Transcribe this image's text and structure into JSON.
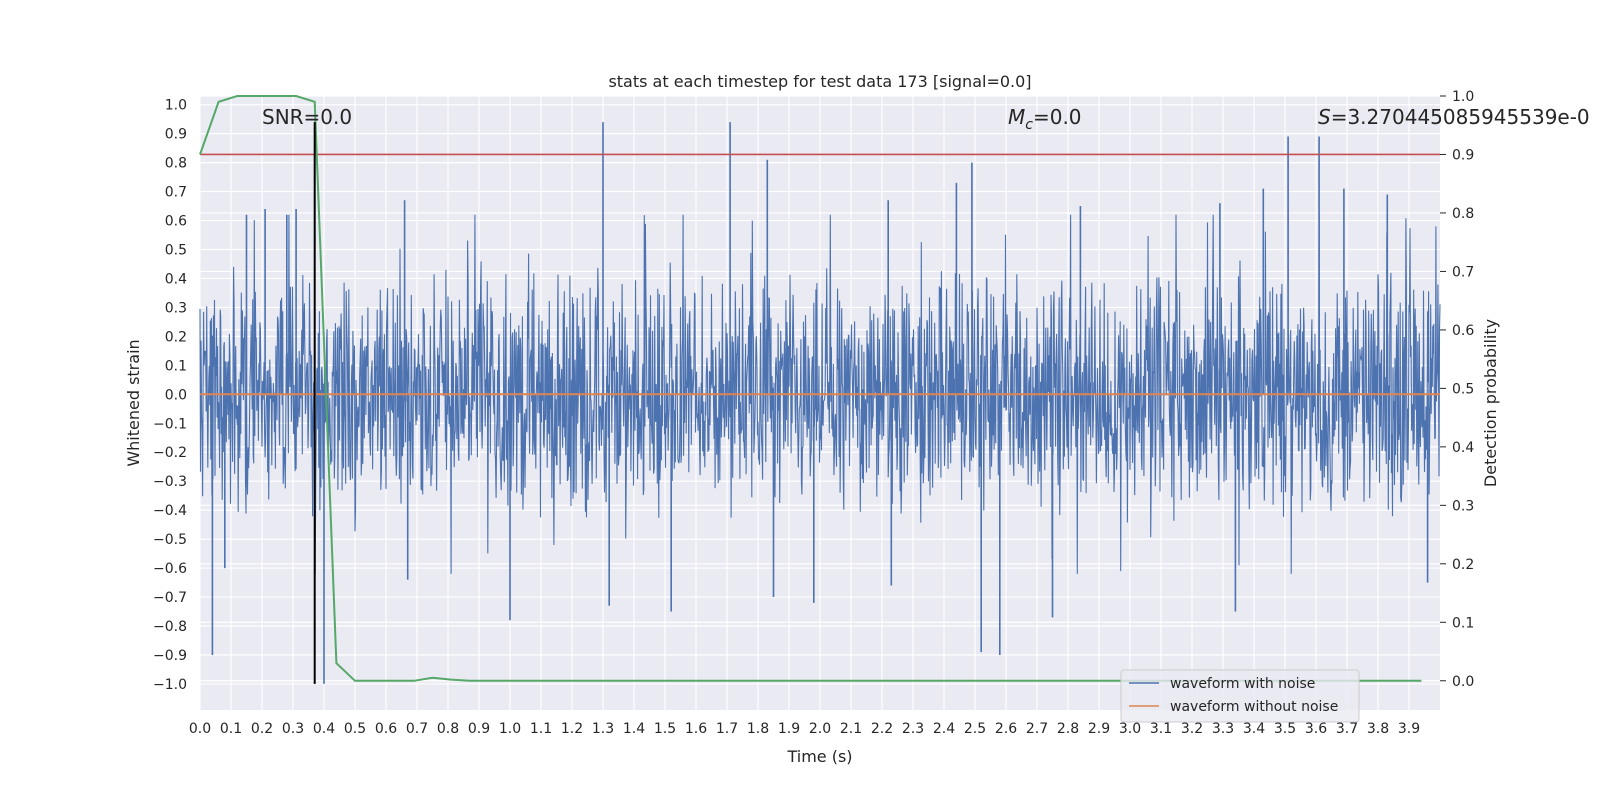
{
  "chart_data": {
    "type": "line",
    "title": "stats at each timestep for test data 173 [signal=0.0]",
    "xlabel": "Time (s)",
    "ylabel": "Whitened strain",
    "y2label": "Detection probability",
    "xlim": [
      0.0,
      4.0
    ],
    "ylim": [
      -1.09,
      1.03
    ],
    "y2lim": [
      -0.05,
      1.0
    ],
    "x_ticks": [
      "0.0",
      "0.1",
      "0.2",
      "0.3",
      "0.4",
      "0.5",
      "0.6",
      "0.7",
      "0.8",
      "0.9",
      "1.0",
      "1.1",
      "1.2",
      "1.3",
      "1.4",
      "1.5",
      "1.6",
      "1.7",
      "1.8",
      "1.9",
      "2.0",
      "2.1",
      "2.2",
      "2.3",
      "2.4",
      "2.5",
      "2.6",
      "2.7",
      "2.8",
      "2.9",
      "3.0",
      "3.1",
      "3.2",
      "3.3",
      "3.4",
      "3.5",
      "3.6",
      "3.7",
      "3.8",
      "3.9"
    ],
    "y_ticks": [
      "−1.0",
      "−0.9",
      "−0.8",
      "−0.7",
      "−0.6",
      "−0.5",
      "−0.4",
      "−0.3",
      "−0.2",
      "−0.1",
      "0.0",
      "0.1",
      "0.2",
      "0.3",
      "0.4",
      "0.5",
      "0.6",
      "0.7",
      "0.8",
      "0.9",
      "1.0"
    ],
    "y2_ticks": [
      "0.0",
      "0.1",
      "0.2",
      "0.3",
      "0.4",
      "0.5",
      "0.6",
      "0.7",
      "0.8",
      "0.9",
      "1.0"
    ],
    "annotations": {
      "snr": "SNR=0.0",
      "mc_prefix": "M",
      "mc_sub": "c",
      "mc_value": "=0.0",
      "s_prefix": "S",
      "s_value": "=3.270445085945539e-0"
    },
    "series": [
      {
        "name": "waveform with noise",
        "color": "#4c72b0",
        "description": "dense whitened noise trace, mostly within ±0.45 with spikes to about ±0.94",
        "spikes": [
          {
            "x": 0.04,
            "y": -0.9
          },
          {
            "x": 0.08,
            "y": -0.6
          },
          {
            "x": 0.15,
            "y": 0.62
          },
          {
            "x": 0.21,
            "y": 0.64
          },
          {
            "x": 0.28,
            "y": 0.62
          },
          {
            "x": 0.31,
            "y": 0.64
          },
          {
            "x": 0.4,
            "y": -1.0
          },
          {
            "x": 0.66,
            "y": 0.67
          },
          {
            "x": 0.67,
            "y": -0.64
          },
          {
            "x": 1.0,
            "y": -0.78
          },
          {
            "x": 1.3,
            "y": 0.94
          },
          {
            "x": 1.32,
            "y": -0.73
          },
          {
            "x": 1.52,
            "y": -0.75
          },
          {
            "x": 1.71,
            "y": 0.94
          },
          {
            "x": 1.83,
            "y": 0.81
          },
          {
            "x": 1.85,
            "y": -0.7
          },
          {
            "x": 1.98,
            "y": -0.72
          },
          {
            "x": 2.22,
            "y": 0.67
          },
          {
            "x": 2.23,
            "y": -0.66
          },
          {
            "x": 2.44,
            "y": 0.73
          },
          {
            "x": 2.49,
            "y": 0.8
          },
          {
            "x": 2.52,
            "y": -0.89
          },
          {
            "x": 2.58,
            "y": -0.9
          },
          {
            "x": 2.75,
            "y": -0.77
          },
          {
            "x": 2.84,
            "y": 0.65
          },
          {
            "x": 3.29,
            "y": 0.66
          },
          {
            "x": 3.34,
            "y": -0.75
          },
          {
            "x": 3.43,
            "y": 0.71
          },
          {
            "x": 3.51,
            "y": 0.89
          },
          {
            "x": 3.61,
            "y": 0.89
          },
          {
            "x": 3.69,
            "y": 0.71
          },
          {
            "x": 3.83,
            "y": 0.69
          },
          {
            "x": 3.96,
            "y": -0.65
          }
        ]
      },
      {
        "name": "waveform without noise",
        "color": "#dd8452",
        "x": [
          0.0,
          4.0
        ],
        "y": [
          0.0,
          0.0
        ]
      },
      {
        "name": "",
        "color": "#55a868",
        "axis": "right",
        "x": [
          0.0,
          0.06,
          0.12,
          0.19,
          0.25,
          0.31,
          0.37,
          0.44,
          0.5,
          0.56,
          0.62,
          0.69,
          0.75,
          0.81,
          0.87,
          0.94,
          1.0,
          1.5,
          2.0,
          2.5,
          3.0,
          3.5,
          3.94
        ],
        "y": [
          0.9,
          0.99,
          1.0,
          1.0,
          1.0,
          1.0,
          0.99,
          0.03,
          0.0,
          0.0,
          0.0,
          0.0,
          0.005,
          0.002,
          0.0,
          0.0,
          0.0,
          0.0,
          0.0,
          0.0,
          0.0,
          0.0,
          0.0
        ]
      },
      {
        "name": "",
        "color": "#c44e52",
        "axis": "right",
        "x": [
          0.0,
          4.0
        ],
        "y": [
          0.9,
          0.9
        ]
      }
    ],
    "vlines": [
      {
        "x": 0.37,
        "y_from": -1.0,
        "y_to": 0.94,
        "color": "#000000"
      }
    ],
    "legend": {
      "position": "lower-right",
      "entries": [
        "waveform with noise",
        "waveform without noise"
      ]
    },
    "grid": true,
    "background": "#eaeaf2"
  }
}
